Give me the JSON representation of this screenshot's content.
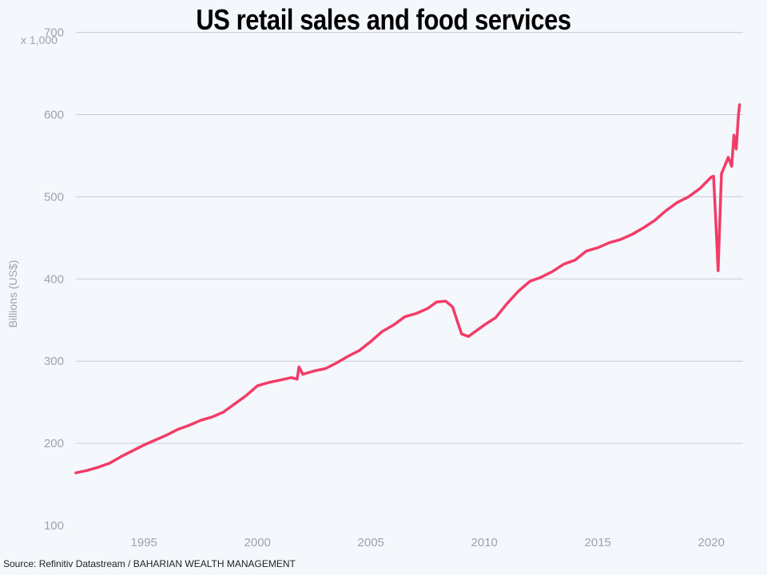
{
  "chart_data": {
    "type": "line",
    "title": "US retail sales and food services",
    "ylabel": "Billions (US$)",
    "unit_note": "x 1,000",
    "source": "Source: Refinitiv Datastream / BAHARIAN WEALTH MANAGEMENT",
    "xlim": [
      1992.0,
      2021.4
    ],
    "ylim": [
      100,
      720
    ],
    "y_ticks": [
      100,
      200,
      300,
      400,
      500,
      600,
      700
    ],
    "x_ticks": [
      1995,
      2000,
      2005,
      2010,
      2015,
      2020
    ],
    "grid": true,
    "line_color": "#f23c68",
    "series": [
      {
        "name": "",
        "x": [
          1992.0,
          1992.5,
          1993.0,
          1993.5,
          1994.0,
          1994.5,
          1995.0,
          1995.5,
          1996.0,
          1996.5,
          1997.0,
          1997.5,
          1998.0,
          1998.5,
          1999.0,
          1999.5,
          2000.0,
          2000.5,
          2001.0,
          2001.5,
          2001.75,
          2001.83,
          2002.0,
          2002.5,
          2003.0,
          2003.5,
          2004.0,
          2004.5,
          2005.0,
          2005.5,
          2006.0,
          2006.5,
          2007.0,
          2007.5,
          2007.9,
          2008.3,
          2008.6,
          2008.85,
          2009.0,
          2009.3,
          2009.5,
          2010.0,
          2010.5,
          2011.0,
          2011.5,
          2012.0,
          2012.5,
          2013.0,
          2013.5,
          2014.0,
          2014.5,
          2015.0,
          2015.5,
          2016.0,
          2016.5,
          2017.0,
          2017.5,
          2018.0,
          2018.5,
          2019.0,
          2019.5,
          2020.0,
          2020.1,
          2020.2,
          2020.3,
          2020.45,
          2020.6,
          2020.75,
          2020.9,
          2021.0,
          2021.1,
          2021.2,
          2021.25
        ],
        "values": [
          164,
          167,
          171,
          176,
          184,
          191,
          198,
          204,
          210,
          217,
          222,
          228,
          232,
          238,
          248,
          258,
          270,
          274,
          277,
          280,
          278,
          293,
          284,
          288,
          291,
          298,
          306,
          313,
          324,
          336,
          344,
          354,
          358,
          364,
          372,
          373,
          366,
          345,
          333,
          330,
          334,
          344,
          353,
          370,
          385,
          397,
          402,
          409,
          418,
          423,
          434,
          438,
          444,
          448,
          454,
          462,
          471,
          483,
          493,
          500,
          510,
          524,
          525,
          471,
          410,
          528,
          538,
          548,
          537,
          575,
          558,
          600,
          612
        ]
      }
    ]
  }
}
